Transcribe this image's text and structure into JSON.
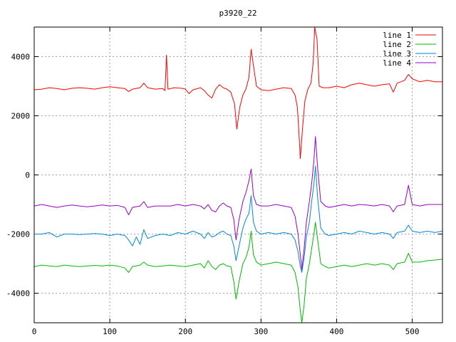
{
  "chart_data": {
    "type": "line",
    "title": "p3920_22",
    "xlabel": "",
    "ylabel": "",
    "xlim": [
      0,
      540
    ],
    "ylim": [
      -5000,
      5000
    ],
    "xticks": [
      0,
      100,
      200,
      300,
      400,
      500
    ],
    "yticks": [
      -4000,
      -2000,
      0,
      2000,
      4000
    ],
    "grid": true,
    "legend_position": "top-right",
    "series": [
      {
        "name": "line 1",
        "color": "#ff0000",
        "points": [
          [
            0,
            2880
          ],
          [
            10,
            2900
          ],
          [
            20,
            2950
          ],
          [
            30,
            2920
          ],
          [
            40,
            2880
          ],
          [
            50,
            2930
          ],
          [
            60,
            2950
          ],
          [
            70,
            2930
          ],
          [
            80,
            2900
          ],
          [
            90,
            2950
          ],
          [
            100,
            2980
          ],
          [
            110,
            2950
          ],
          [
            120,
            2920
          ],
          [
            125,
            2820
          ],
          [
            130,
            2900
          ],
          [
            140,
            2950
          ],
          [
            145,
            3100
          ],
          [
            150,
            2950
          ],
          [
            160,
            2900
          ],
          [
            170,
            2920
          ],
          [
            173,
            2850
          ],
          [
            175,
            4050
          ],
          [
            177,
            2900
          ],
          [
            185,
            2950
          ],
          [
            195,
            2930
          ],
          [
            200,
            2900
          ],
          [
            205,
            2750
          ],
          [
            210,
            2880
          ],
          [
            220,
            2950
          ],
          [
            225,
            2850
          ],
          [
            230,
            2700
          ],
          [
            235,
            2600
          ],
          [
            240,
            2900
          ],
          [
            245,
            3050
          ],
          [
            250,
            2950
          ],
          [
            255,
            2900
          ],
          [
            260,
            2800
          ],
          [
            265,
            2400
          ],
          [
            268,
            1550
          ],
          [
            272,
            2300
          ],
          [
            276,
            2700
          ],
          [
            280,
            2900
          ],
          [
            284,
            3300
          ],
          [
            287,
            4250
          ],
          [
            290,
            3700
          ],
          [
            294,
            3000
          ],
          [
            300,
            2880
          ],
          [
            310,
            2850
          ],
          [
            320,
            2900
          ],
          [
            330,
            2950
          ],
          [
            340,
            2920
          ],
          [
            345,
            2700
          ],
          [
            348,
            2300
          ],
          [
            350,
            1500
          ],
          [
            352,
            550
          ],
          [
            355,
            1600
          ],
          [
            358,
            2500
          ],
          [
            362,
            2900
          ],
          [
            366,
            3100
          ],
          [
            369,
            3800
          ],
          [
            371,
            5000
          ],
          [
            374,
            4600
          ],
          [
            377,
            3000
          ],
          [
            382,
            2950
          ],
          [
            390,
            2950
          ],
          [
            400,
            3000
          ],
          [
            410,
            2950
          ],
          [
            420,
            3050
          ],
          [
            430,
            3100
          ],
          [
            440,
            3050
          ],
          [
            450,
            3000
          ],
          [
            460,
            3050
          ],
          [
            470,
            3080
          ],
          [
            475,
            2800
          ],
          [
            480,
            3100
          ],
          [
            490,
            3200
          ],
          [
            495,
            3400
          ],
          [
            500,
            3250
          ],
          [
            510,
            3150
          ],
          [
            520,
            3200
          ],
          [
            530,
            3150
          ],
          [
            540,
            3150
          ]
        ]
      },
      {
        "name": "line 2",
        "color": "#00bb00",
        "points": [
          [
            0,
            -3100
          ],
          [
            10,
            -3050
          ],
          [
            20,
            -3080
          ],
          [
            30,
            -3100
          ],
          [
            40,
            -3050
          ],
          [
            50,
            -3080
          ],
          [
            60,
            -3100
          ],
          [
            70,
            -3080
          ],
          [
            80,
            -3060
          ],
          [
            90,
            -3080
          ],
          [
            100,
            -3050
          ],
          [
            110,
            -3080
          ],
          [
            120,
            -3150
          ],
          [
            125,
            -3300
          ],
          [
            130,
            -3100
          ],
          [
            140,
            -3050
          ],
          [
            145,
            -2950
          ],
          [
            150,
            -3050
          ],
          [
            160,
            -3100
          ],
          [
            170,
            -3080
          ],
          [
            180,
            -3050
          ],
          [
            190,
            -3080
          ],
          [
            200,
            -3100
          ],
          [
            210,
            -3050
          ],
          [
            220,
            -3000
          ],
          [
            225,
            -3150
          ],
          [
            230,
            -2900
          ],
          [
            235,
            -3100
          ],
          [
            240,
            -3200
          ],
          [
            245,
            -3050
          ],
          [
            250,
            -3000
          ],
          [
            255,
            -3080
          ],
          [
            260,
            -3100
          ],
          [
            264,
            -3600
          ],
          [
            267,
            -4200
          ],
          [
            271,
            -3600
          ],
          [
            276,
            -3000
          ],
          [
            280,
            -2800
          ],
          [
            284,
            -2450
          ],
          [
            287,
            -1900
          ],
          [
            290,
            -2700
          ],
          [
            294,
            -2950
          ],
          [
            300,
            -3050
          ],
          [
            310,
            -3000
          ],
          [
            320,
            -2950
          ],
          [
            330,
            -3000
          ],
          [
            340,
            -3050
          ],
          [
            345,
            -3300
          ],
          [
            349,
            -3800
          ],
          [
            352,
            -4600
          ],
          [
            354,
            -5000
          ],
          [
            357,
            -4400
          ],
          [
            360,
            -3500
          ],
          [
            364,
            -3000
          ],
          [
            367,
            -2500
          ],
          [
            370,
            -2000
          ],
          [
            372,
            -1600
          ],
          [
            375,
            -2200
          ],
          [
            379,
            -3000
          ],
          [
            385,
            -3100
          ],
          [
            390,
            -3150
          ],
          [
            400,
            -3100
          ],
          [
            410,
            -3050
          ],
          [
            420,
            -3100
          ],
          [
            430,
            -3050
          ],
          [
            440,
            -3000
          ],
          [
            450,
            -3050
          ],
          [
            460,
            -3000
          ],
          [
            470,
            -3050
          ],
          [
            475,
            -3200
          ],
          [
            480,
            -3000
          ],
          [
            490,
            -2950
          ],
          [
            495,
            -2650
          ],
          [
            500,
            -2950
          ],
          [
            510,
            -2950
          ],
          [
            520,
            -2900
          ],
          [
            530,
            -2880
          ],
          [
            540,
            -2850
          ]
        ]
      },
      {
        "name": "line 3",
        "color": "#0088dd",
        "points": [
          [
            0,
            -2000
          ],
          [
            10,
            -2000
          ],
          [
            20,
            -1950
          ],
          [
            30,
            -2100
          ],
          [
            40,
            -2000
          ],
          [
            50,
            -2000
          ],
          [
            60,
            -2020
          ],
          [
            70,
            -2000
          ],
          [
            80,
            -1980
          ],
          [
            90,
            -2000
          ],
          [
            100,
            -2050
          ],
          [
            110,
            -2000
          ],
          [
            120,
            -2050
          ],
          [
            125,
            -2200
          ],
          [
            130,
            -2400
          ],
          [
            135,
            -2100
          ],
          [
            140,
            -2350
          ],
          [
            145,
            -1850
          ],
          [
            150,
            -2150
          ],
          [
            160,
            -2050
          ],
          [
            170,
            -2000
          ],
          [
            180,
            -2050
          ],
          [
            190,
            -1950
          ],
          [
            200,
            -2000
          ],
          [
            210,
            -1900
          ],
          [
            220,
            -2000
          ],
          [
            225,
            -2150
          ],
          [
            230,
            -1950
          ],
          [
            235,
            -2100
          ],
          [
            240,
            -2050
          ],
          [
            245,
            -1950
          ],
          [
            250,
            -1900
          ],
          [
            255,
            -2000
          ],
          [
            260,
            -2050
          ],
          [
            264,
            -2400
          ],
          [
            267,
            -2900
          ],
          [
            271,
            -2400
          ],
          [
            276,
            -1800
          ],
          [
            280,
            -1500
          ],
          [
            284,
            -1300
          ],
          [
            287,
            -700
          ],
          [
            290,
            -1600
          ],
          [
            294,
            -1900
          ],
          [
            300,
            -2000
          ],
          [
            310,
            -1950
          ],
          [
            320,
            -2000
          ],
          [
            330,
            -1950
          ],
          [
            340,
            -2000
          ],
          [
            345,
            -2200
          ],
          [
            349,
            -2600
          ],
          [
            352,
            -3100
          ],
          [
            354,
            -3300
          ],
          [
            357,
            -2800
          ],
          [
            360,
            -2100
          ],
          [
            364,
            -1600
          ],
          [
            367,
            -900
          ],
          [
            370,
            -300
          ],
          [
            372,
            300
          ],
          [
            375,
            -800
          ],
          [
            379,
            -1800
          ],
          [
            385,
            -2000
          ],
          [
            390,
            -2050
          ],
          [
            400,
            -2000
          ],
          [
            410,
            -1950
          ],
          [
            420,
            -2000
          ],
          [
            430,
            -1900
          ],
          [
            440,
            -1950
          ],
          [
            450,
            -2000
          ],
          [
            460,
            -1950
          ],
          [
            470,
            -2000
          ],
          [
            475,
            -2150
          ],
          [
            480,
            -1950
          ],
          [
            490,
            -1900
          ],
          [
            495,
            -1700
          ],
          [
            500,
            -1900
          ],
          [
            510,
            -1950
          ],
          [
            520,
            -1900
          ],
          [
            530,
            -1950
          ],
          [
            540,
            -1900
          ]
        ]
      },
      {
        "name": "line 4",
        "color": "#9900cc",
        "points": [
          [
            0,
            -1050
          ],
          [
            10,
            -1000
          ],
          [
            20,
            -1050
          ],
          [
            30,
            -1100
          ],
          [
            40,
            -1050
          ],
          [
            50,
            -1020
          ],
          [
            60,
            -1050
          ],
          [
            70,
            -1080
          ],
          [
            80,
            -1050
          ],
          [
            90,
            -1020
          ],
          [
            100,
            -1050
          ],
          [
            110,
            -1030
          ],
          [
            120,
            -1100
          ],
          [
            125,
            -1350
          ],
          [
            130,
            -1100
          ],
          [
            140,
            -1050
          ],
          [
            145,
            -900
          ],
          [
            150,
            -1100
          ],
          [
            160,
            -1050
          ],
          [
            170,
            -1050
          ],
          [
            180,
            -1050
          ],
          [
            190,
            -1000
          ],
          [
            200,
            -1050
          ],
          [
            210,
            -1000
          ],
          [
            220,
            -1050
          ],
          [
            225,
            -1150
          ],
          [
            230,
            -1000
          ],
          [
            235,
            -1200
          ],
          [
            240,
            -1250
          ],
          [
            245,
            -1050
          ],
          [
            250,
            -950
          ],
          [
            255,
            -1050
          ],
          [
            260,
            -1100
          ],
          [
            264,
            -1500
          ],
          [
            267,
            -2200
          ],
          [
            271,
            -1500
          ],
          [
            276,
            -900
          ],
          [
            280,
            -600
          ],
          [
            284,
            -200
          ],
          [
            287,
            200
          ],
          [
            290,
            -700
          ],
          [
            294,
            -1000
          ],
          [
            300,
            -1050
          ],
          [
            310,
            -1050
          ],
          [
            320,
            -1000
          ],
          [
            330,
            -1050
          ],
          [
            340,
            -1100
          ],
          [
            345,
            -1400
          ],
          [
            349,
            -2000
          ],
          [
            352,
            -2700
          ],
          [
            354,
            -3200
          ],
          [
            357,
            -2500
          ],
          [
            360,
            -1600
          ],
          [
            364,
            -900
          ],
          [
            367,
            -300
          ],
          [
            370,
            500
          ],
          [
            372,
            1300
          ],
          [
            375,
            200
          ],
          [
            379,
            -900
          ],
          [
            385,
            -1050
          ],
          [
            390,
            -1100
          ],
          [
            400,
            -1050
          ],
          [
            410,
            -1000
          ],
          [
            420,
            -1050
          ],
          [
            430,
            -1000
          ],
          [
            440,
            -1020
          ],
          [
            450,
            -1050
          ],
          [
            460,
            -1000
          ],
          [
            470,
            -1050
          ],
          [
            475,
            -1250
          ],
          [
            480,
            -1050
          ],
          [
            490,
            -1000
          ],
          [
            495,
            -350
          ],
          [
            500,
            -1000
          ],
          [
            510,
            -1050
          ],
          [
            520,
            -1000
          ],
          [
            530,
            -1000
          ],
          [
            540,
            -1000
          ]
        ]
      }
    ]
  }
}
